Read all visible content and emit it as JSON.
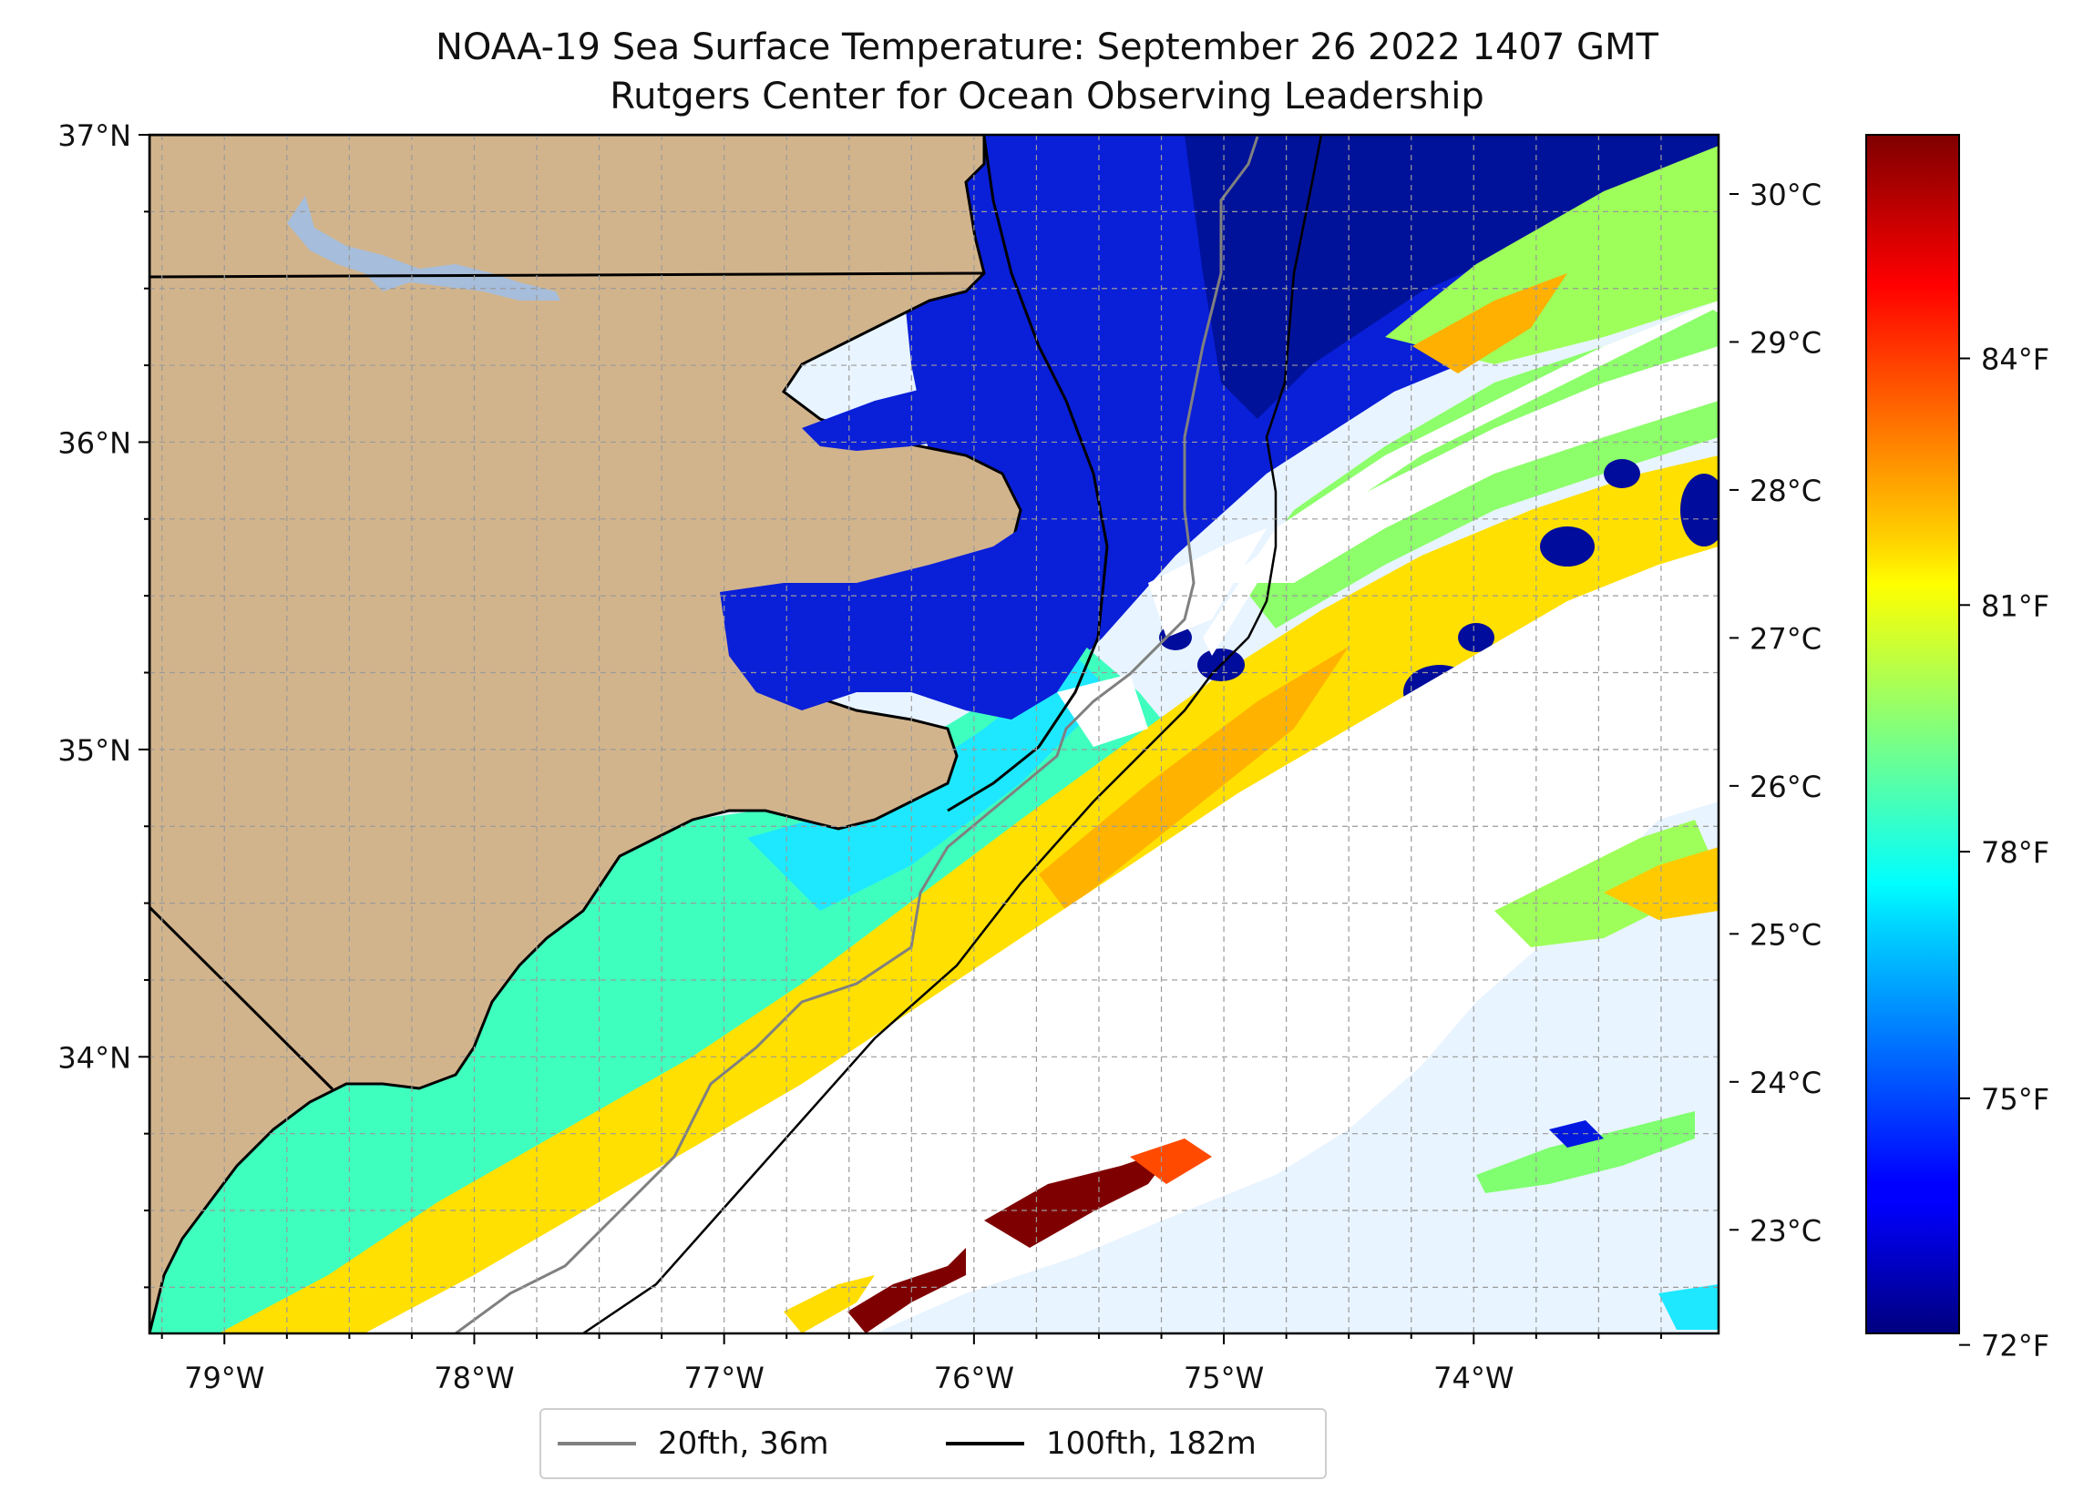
{
  "title": {
    "line1": "NOAA-19 Sea Surface Temperature: September 26 2022 1407 GMT",
    "line2": "Rutgers Center for Ocean Observing Leadership"
  },
  "map": {
    "lon_range": [
      -79.3,
      -73.02
    ],
    "lat_range": [
      33.1,
      37.0
    ],
    "lon_ticks": [
      {
        "value": -79,
        "label": "79°W"
      },
      {
        "value": -78,
        "label": "78°W"
      },
      {
        "value": -77,
        "label": "77°W"
      },
      {
        "value": -76,
        "label": "76°W"
      },
      {
        "value": -75,
        "label": "75°W"
      },
      {
        "value": -74,
        "label": "74°W"
      }
    ],
    "lat_ticks": [
      {
        "value": 37,
        "label": "37°N"
      },
      {
        "value": 36,
        "label": "36°N"
      },
      {
        "value": 35,
        "label": "35°N"
      },
      {
        "value": 34,
        "label": "34°N"
      }
    ],
    "grid": true,
    "colors": {
      "land": "#d2b48c",
      "lake": "#a6bddb",
      "no_data": "#ffffff",
      "isobath_20": "#808080",
      "isobath_100": "#000000"
    }
  },
  "colorbar": {
    "colormap": "jet",
    "celsius_range": [
      22.3,
      30.4
    ],
    "celsius_ticks": [
      {
        "value": 30,
        "label": "30°C"
      },
      {
        "value": 29,
        "label": "29°C"
      },
      {
        "value": 28,
        "label": "28°C"
      },
      {
        "value": 27,
        "label": "27°C"
      },
      {
        "value": 26,
        "label": "26°C"
      },
      {
        "value": 25,
        "label": "25°C"
      },
      {
        "value": 24,
        "label": "24°C"
      },
      {
        "value": 23,
        "label": "23°C"
      }
    ],
    "fahrenheit_ticks": [
      {
        "value": 84,
        "label": "84°F"
      },
      {
        "value": 81,
        "label": "81°F"
      },
      {
        "value": 78,
        "label": "78°F"
      },
      {
        "value": 75,
        "label": "75°F"
      },
      {
        "value": 72,
        "label": "72°F"
      }
    ]
  },
  "legend": {
    "items": [
      {
        "label": "20fth, 36m",
        "color": "#808080"
      },
      {
        "label": "100fth, 182m",
        "color": "#000000"
      }
    ]
  }
}
